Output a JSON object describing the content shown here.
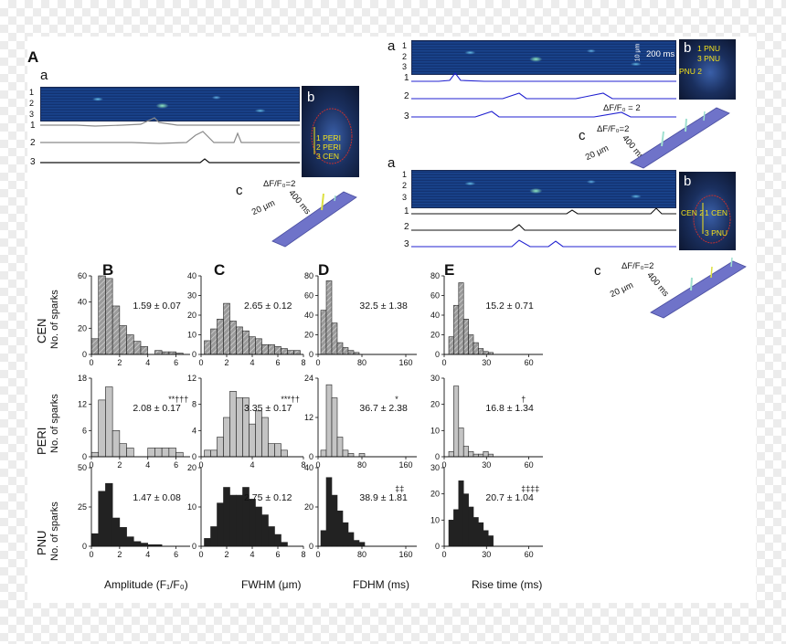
{
  "panels": {
    "main_letter": "A",
    "hist_letters": [
      "B",
      "C",
      "D",
      "E"
    ],
    "sub_a": "a",
    "sub_b": "b",
    "sub_c": "c"
  },
  "scan_labels": [
    "1",
    "2",
    "3"
  ],
  "trace_labels": [
    "1",
    "2",
    "3"
  ],
  "cells": {
    "cell1": [
      "1 PERI",
      "2 PERI",
      "3 CEN"
    ],
    "cell2": [
      "1 PNU",
      "3 PNU",
      "PNU 2"
    ],
    "cell3": [
      "CEN 2",
      "1 CEN",
      "3 PNU"
    ]
  },
  "scales": {
    "df": "ΔF/F₀ = 2",
    "df_3d": "ΔF/F₀=2",
    "um": "20 μm",
    "ms": "400 ms",
    "time_bar": "200 ms",
    "space_bar": "10 μm"
  },
  "colors": {
    "cen": "#9a9a9a",
    "peri": "#c4c4c4",
    "pnu": "#222222",
    "trace_blue": "#2020d0",
    "trace_gray": "#8a8a8a",
    "surface": "#6f73c9"
  },
  "rows": {
    "titles": [
      "CEN",
      "PERI",
      "PNU"
    ],
    "ylabel": "No. of sparks"
  },
  "axis_titles": [
    "Amplitude (F₁/F₀)",
    "FWHM (μm)",
    "FDHM (ms)",
    "Rise time (ms)"
  ],
  "chart_data": [
    {
      "type": "bar",
      "row": "CEN",
      "metric": "Amplitude",
      "xlim": [
        0,
        7
      ],
      "ylim": [
        0,
        60
      ],
      "xticks": [
        0,
        2,
        4,
        6
      ],
      "yticks": [
        0,
        20,
        40,
        60
      ],
      "bin_start": 0.25,
      "bin_width": 0.5,
      "values": [
        12,
        60,
        58,
        37,
        22,
        15,
        10,
        6,
        0,
        3,
        2,
        2,
        1
      ],
      "annotation": "1.59 ± 0.07"
    },
    {
      "type": "bar",
      "row": "CEN",
      "metric": "FWHM",
      "xlim": [
        0,
        8
      ],
      "ylim": [
        0,
        40
      ],
      "xticks": [
        0,
        2,
        4,
        6,
        8
      ],
      "yticks": [
        0,
        10,
        20,
        30,
        40
      ],
      "bin_start": 0.5,
      "bin_width": 0.5,
      "values": [
        7,
        13,
        18,
        26,
        17,
        14,
        12,
        9,
        8,
        5,
        5,
        4,
        3,
        2,
        2
      ],
      "annotation": "2.65 ± 0.12"
    },
    {
      "type": "bar",
      "row": "CEN",
      "metric": "FDHM",
      "xlim": [
        0,
        180
      ],
      "ylim": [
        0,
        80
      ],
      "xticks": [
        0,
        80,
        160
      ],
      "yticks": [
        0,
        20,
        40,
        60,
        80
      ],
      "bin_start": 10,
      "bin_width": 10,
      "values": [
        45,
        75,
        32,
        12,
        7,
        4,
        2
      ],
      "annotation": "32.5 ± 1.38"
    },
    {
      "type": "bar",
      "row": "CEN",
      "metric": "Rise time",
      "xlim": [
        0,
        70
      ],
      "ylim": [
        0,
        80
      ],
      "xticks": [
        0,
        30,
        60
      ],
      "yticks": [
        0,
        20,
        40,
        60,
        80
      ],
      "bin_start": 5,
      "bin_width": 3.5,
      "values": [
        18,
        50,
        73,
        36,
        20,
        12,
        6,
        3,
        2
      ],
      "annotation": "15.2 ± 0.71"
    },
    {
      "type": "bar",
      "row": "PERI",
      "metric": "Amplitude",
      "xlim": [
        0,
        7
      ],
      "ylim": [
        0,
        18
      ],
      "xticks": [
        0,
        2,
        4,
        6
      ],
      "yticks": [
        0,
        6,
        12,
        18
      ],
      "bin_start": 0.25,
      "bin_width": 0.5,
      "values": [
        1,
        13,
        16,
        6,
        3,
        2,
        0,
        0,
        2,
        2,
        2,
        2,
        1
      ],
      "annotation": "2.08 ± 0.17",
      "mark": "**†††"
    },
    {
      "type": "bar",
      "row": "PERI",
      "metric": "FWHM",
      "xlim": [
        0,
        8
      ],
      "ylim": [
        0,
        12
      ],
      "xticks": [
        0,
        4,
        8
      ],
      "yticks": [
        0,
        4,
        8,
        12
      ],
      "bin_start": 0.5,
      "bin_width": 0.5,
      "values": [
        1,
        1,
        3,
        6,
        10,
        9,
        9,
        5,
        7,
        6,
        2,
        2,
        1
      ],
      "annotation": "3.35 ± 0.17",
      "mark": "***††"
    },
    {
      "type": "bar",
      "row": "PERI",
      "metric": "FDHM",
      "xlim": [
        0,
        180
      ],
      "ylim": [
        0,
        24
      ],
      "xticks": [
        0,
        80,
        160
      ],
      "yticks": [
        0,
        12,
        24
      ],
      "bin_start": 10,
      "bin_width": 10,
      "values": [
        2,
        22,
        18,
        6,
        2,
        1,
        0,
        1
      ],
      "annotation": "36.7 ± 2.38",
      "mark": "*"
    },
    {
      "type": "bar",
      "row": "PERI",
      "metric": "Rise time",
      "xlim": [
        0,
        70
      ],
      "ylim": [
        0,
        30
      ],
      "xticks": [
        0,
        30,
        60
      ],
      "yticks": [
        0,
        10,
        20,
        30
      ],
      "bin_start": 5,
      "bin_width": 3.5,
      "values": [
        2,
        27,
        11,
        4,
        2,
        1,
        1,
        2,
        1
      ],
      "annotation": "16.8 ± 1.34",
      "mark": "†"
    },
    {
      "type": "bar",
      "row": "PNU",
      "metric": "Amplitude",
      "xlim": [
        0,
        7
      ],
      "ylim": [
        0,
        50
      ],
      "xticks": [
        0,
        2,
        4,
        6
      ],
      "yticks": [
        0,
        25,
        50
      ],
      "bin_start": 0.25,
      "bin_width": 0.5,
      "values": [
        8,
        35,
        40,
        18,
        12,
        6,
        3,
        2,
        1,
        1
      ],
      "annotation": "1.47 ± 0.08"
    },
    {
      "type": "bar",
      "row": "PNU",
      "metric": "FWHM",
      "xlim": [
        0,
        8
      ],
      "ylim": [
        0,
        20
      ],
      "xticks": [
        0,
        2,
        4,
        6,
        8
      ],
      "yticks": [
        0,
        10,
        20
      ],
      "bin_start": 0.5,
      "bin_width": 0.5,
      "values": [
        2,
        5,
        11,
        15,
        13,
        13,
        15,
        12,
        10,
        8,
        5,
        3,
        1
      ],
      "annotation": "2.75 ± 0.12"
    },
    {
      "type": "bar",
      "row": "PNU",
      "metric": "FDHM",
      "xlim": [
        0,
        180
      ],
      "ylim": [
        0,
        40
      ],
      "xticks": [
        0,
        80,
        160
      ],
      "yticks": [
        0,
        20,
        40
      ],
      "bin_start": 10,
      "bin_width": 10,
      "values": [
        8,
        35,
        26,
        18,
        12,
        7,
        3,
        2
      ],
      "annotation": "38.9 ± 1.81",
      "mark": "‡‡"
    },
    {
      "type": "bar",
      "row": "PNU",
      "metric": "Rise time",
      "xlim": [
        0,
        70
      ],
      "ylim": [
        0,
        30
      ],
      "xticks": [
        0,
        30,
        60
      ],
      "yticks": [
        0,
        10,
        20,
        30
      ],
      "bin_start": 5,
      "bin_width": 3.5,
      "values": [
        10,
        14,
        25,
        20,
        15,
        11,
        9,
        6,
        4
      ],
      "annotation": "20.7 ± 1.04",
      "mark": "‡‡‡‡"
    }
  ]
}
